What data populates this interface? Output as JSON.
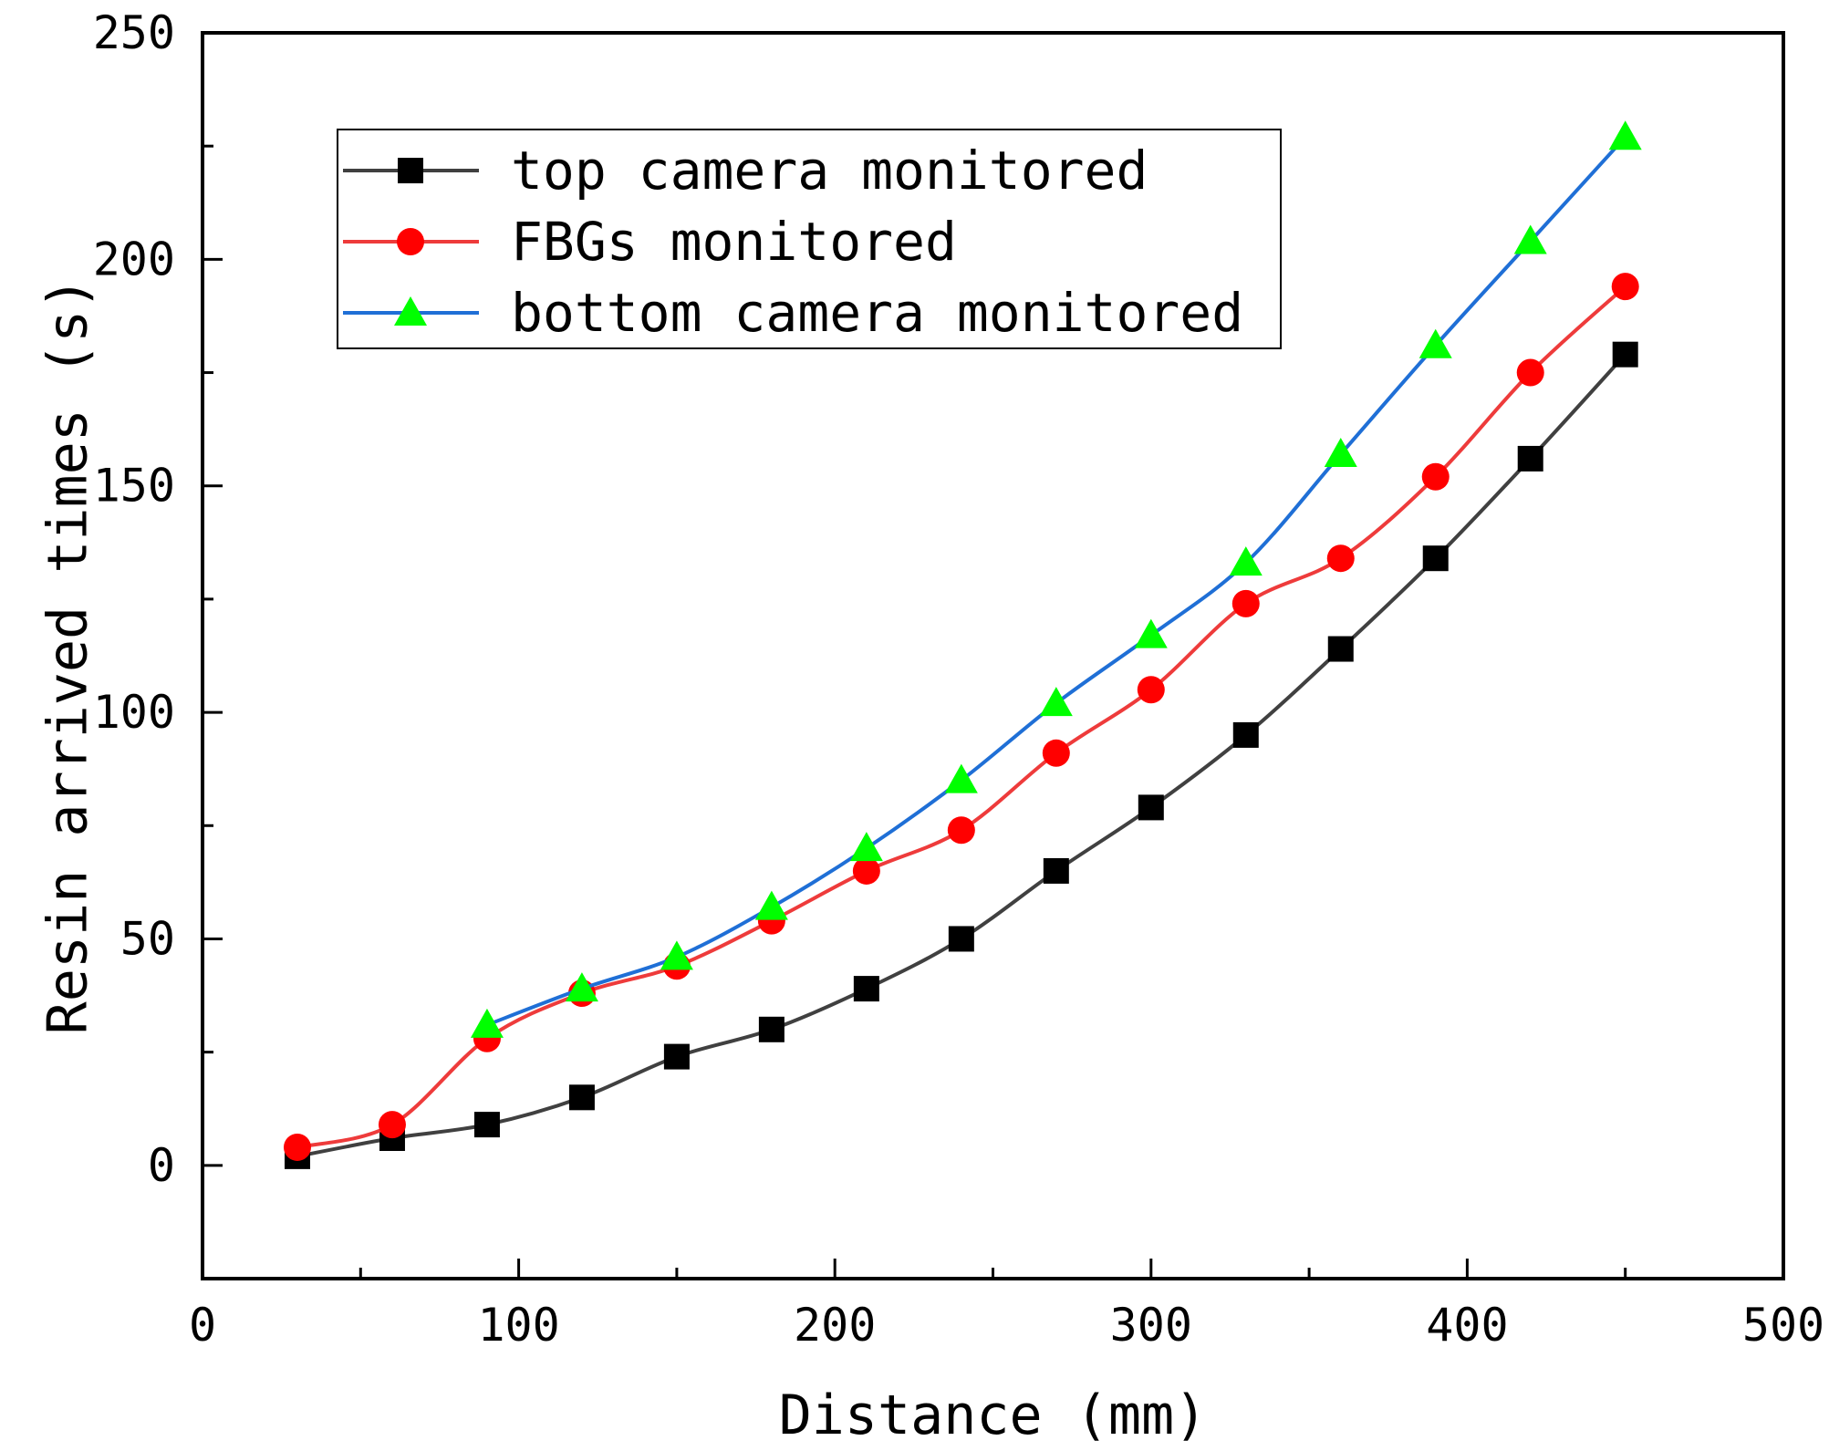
{
  "chart_data": {
    "type": "line",
    "title": "",
    "xlabel": "Distance (mm)",
    "ylabel": "Resin arrived times (s)",
    "xlim": [
      0,
      500
    ],
    "ylim": [
      -25,
      250
    ],
    "xticks": [
      0,
      100,
      200,
      300,
      400,
      500
    ],
    "yticks": [
      0,
      50,
      100,
      150,
      200,
      250
    ],
    "grid": false,
    "legend_position": "top-left",
    "series": [
      {
        "name": "top camera monitored",
        "color": "#404040",
        "marker": "square",
        "marker_color": "#000000",
        "x": [
          30,
          60,
          90,
          120,
          150,
          180,
          210,
          240,
          270,
          300,
          330,
          360,
          390,
          420,
          450
        ],
        "y": [
          2,
          6,
          9,
          15,
          24,
          30,
          39,
          50,
          65,
          79,
          95,
          114,
          134,
          156,
          179
        ]
      },
      {
        "name": "FBGs monitored",
        "color": "#ee3b3b",
        "marker": "circle",
        "marker_color": "#ff0000",
        "x": [
          30,
          60,
          90,
          120,
          150,
          180,
          210,
          240,
          270,
          300,
          330,
          360,
          390,
          420,
          450
        ],
        "y": [
          4,
          9,
          28,
          38,
          44,
          54,
          65,
          74,
          91,
          105,
          124,
          134,
          152,
          175,
          194
        ]
      },
      {
        "name": "bottom camera monitored",
        "color": "#1f6fd6",
        "marker": "triangle",
        "marker_color": "#00ff00",
        "x": [
          90,
          120,
          150,
          180,
          210,
          240,
          270,
          300,
          330,
          360,
          390,
          420,
          450
        ],
        "y": [
          31,
          39,
          46,
          57,
          70,
          85,
          102,
          117,
          133,
          157,
          181,
          204,
          227
        ]
      }
    ]
  }
}
